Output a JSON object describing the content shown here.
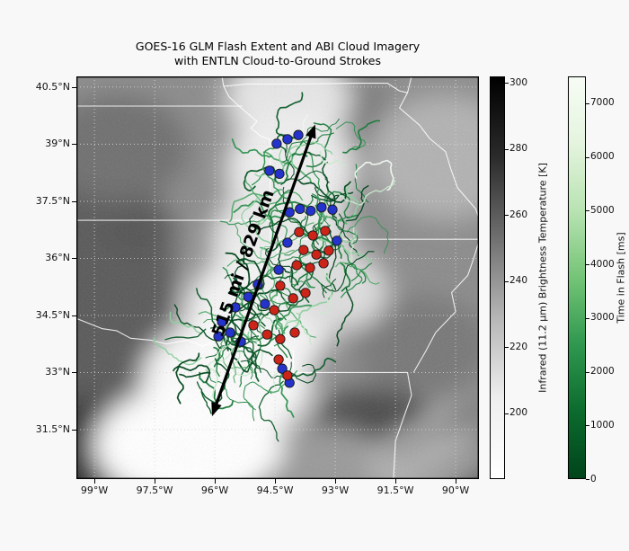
{
  "figure": {
    "title_line1": "GOES-16 GLM Flash Extent and ABI Cloud Imagery",
    "title_line2": "with ENTLN Cloud-to-Ground Strokes",
    "background_color": "#f8f8f8"
  },
  "chart_data": {
    "type": "scatter",
    "title": "GOES-16 GLM Flash Extent and ABI Cloud Imagery with ENTLN Cloud-to-Ground Strokes",
    "map_extent": {
      "lon_min": -99.45,
      "lon_max": -89.42,
      "lat_min": 30.2,
      "lat_max": 40.78
    },
    "x_ticks": [
      {
        "lon": -99,
        "label": "99°W"
      },
      {
        "lon": -97.5,
        "label": "97.5°W"
      },
      {
        "lon": -96,
        "label": "96°W"
      },
      {
        "lon": -94.5,
        "label": "94.5°W"
      },
      {
        "lon": -93,
        "label": "93°W"
      },
      {
        "lon": -91.5,
        "label": "91.5°W"
      },
      {
        "lon": -90,
        "label": "90°W"
      }
    ],
    "y_ticks": [
      {
        "lat": 40.5,
        "label": "40.5°N"
      },
      {
        "lat": 39,
        "label": "39°N"
      },
      {
        "lat": 37.5,
        "label": "37.5°N"
      },
      {
        "lat": 36,
        "label": "36°N"
      },
      {
        "lat": 34.5,
        "label": "34.5°N"
      },
      {
        "lat": 33,
        "label": "33°N"
      },
      {
        "lat": 31.5,
        "label": "31.5°N"
      }
    ],
    "annotation": {
      "text": "515 mi / 829 km",
      "start": [
        -96.07,
        31.85
      ],
      "end": [
        -93.5,
        39.52
      ]
    },
    "colorbars": [
      {
        "label": "Infrared (11.2 μm) Brightness Temperature [K]",
        "vmin": 180,
        "vmax": 302,
        "ticks": [
          300,
          280,
          260,
          240,
          220,
          200
        ],
        "gradient_top_to_bottom": [
          "#000000",
          "#2b2b2b",
          "#6f6f6f",
          "#b6b6b6",
          "#eeeeee",
          "#ffffff"
        ]
      },
      {
        "label": "Time in Flash [ms]",
        "vmin": 0,
        "vmax": 7500,
        "ticks": [
          7000,
          6000,
          5000,
          4000,
          3000,
          2000,
          1000,
          0
        ],
        "gradient_top_to_bottom": [
          "#f7fcf5",
          "#e4f4de",
          "#b8e3b2",
          "#74c476",
          "#2f984f",
          "#0c6b2e",
          "#00441b"
        ]
      }
    ],
    "cg_strokes": {
      "negative_color": "#2433cc",
      "positive_color": "#cc2418",
      "negative": [
        [
          -94.46,
          39.01
        ],
        [
          -94.19,
          39.13
        ],
        [
          -93.92,
          39.24
        ],
        [
          -94.64,
          38.3
        ],
        [
          -94.39,
          38.22
        ],
        [
          -94.14,
          37.21
        ],
        [
          -93.88,
          37.3
        ],
        [
          -93.61,
          37.25
        ],
        [
          -93.34,
          37.34
        ],
        [
          -93.07,
          37.28
        ],
        [
          -94.19,
          36.41
        ],
        [
          -92.96,
          36.46
        ],
        [
          -94.41,
          35.7
        ],
        [
          -94.93,
          35.32
        ],
        [
          -95.17,
          34.99
        ],
        [
          -95.49,
          34.71
        ],
        [
          -94.75,
          34.8
        ],
        [
          -95.82,
          34.33
        ],
        [
          -95.62,
          34.05
        ],
        [
          -95.91,
          33.95
        ],
        [
          -95.35,
          33.81
        ],
        [
          -94.32,
          33.1
        ],
        [
          -94.14,
          32.73
        ]
      ],
      "positive": [
        [
          -93.9,
          36.69
        ],
        [
          -93.56,
          36.6
        ],
        [
          -93.25,
          36.72
        ],
        [
          -93.79,
          36.22
        ],
        [
          -93.47,
          36.1
        ],
        [
          -93.16,
          36.2
        ],
        [
          -93.96,
          35.82
        ],
        [
          -93.63,
          35.75
        ],
        [
          -93.29,
          35.87
        ],
        [
          -94.37,
          35.28
        ],
        [
          -94.05,
          34.95
        ],
        [
          -93.74,
          35.09
        ],
        [
          -94.52,
          34.64
        ],
        [
          -95.04,
          34.24
        ],
        [
          -94.7,
          34.0
        ],
        [
          -94.37,
          33.88
        ],
        [
          -94.01,
          34.05
        ],
        [
          -94.41,
          33.34
        ],
        [
          -94.19,
          32.92
        ]
      ]
    },
    "flash_palette": [
      "#00441b",
      "#0b5a28",
      "#1a7a3a",
      "#2e9150",
      "#55ab6e",
      "#8ecf9f",
      "#c9e8cd",
      "#eef8ef"
    ],
    "flash_palette_weights": [
      0.22,
      0.2,
      0.18,
      0.14,
      0.11,
      0.08,
      0.05,
      0.02
    ],
    "flash_clusters": [
      {
        "lon": -93.63,
        "lat": 38.06,
        "radius_px": 62,
        "branches": 46,
        "seed": 11
      },
      {
        "lon": -93.63,
        "lat": 36.06,
        "radius_px": 58,
        "branches": 42,
        "seed": 22
      },
      {
        "lon": -94.86,
        "lat": 34.64,
        "radius_px": 50,
        "branches": 34,
        "seed": 33
      },
      {
        "lon": -95.64,
        "lat": 33.58,
        "radius_px": 40,
        "branches": 22,
        "seed": 44
      },
      {
        "lon": -94.53,
        "lat": 32.87,
        "radius_px": 28,
        "branches": 13,
        "seed": 55
      },
      {
        "lon": -96.16,
        "lat": 32.68,
        "radius_px": 16,
        "branches": 6,
        "seed": 66
      }
    ],
    "state_borders": [
      [
        [
          -99.45,
          37.0
        ],
        [
          -94.62,
          37.0
        ]
      ],
      [
        [
          -94.62,
          37.0
        ],
        [
          -94.62,
          39.12
        ]
      ],
      [
        [
          -94.62,
          39.12
        ],
        [
          -94.84,
          39.2
        ],
        [
          -95.1,
          39.42
        ],
        [
          -94.95,
          39.6
        ],
        [
          -95.22,
          39.84
        ],
        [
          -95.4,
          40.0
        ],
        [
          -95.65,
          40.25
        ],
        [
          -95.78,
          40.52
        ],
        [
          -95.82,
          40.78
        ]
      ],
      [
        [
          -94.62,
          37.0
        ],
        [
          -94.62,
          36.5
        ],
        [
          -94.44,
          36.5
        ],
        [
          -94.44,
          33.64
        ]
      ],
      [
        [
          -94.62,
          36.5
        ],
        [
          -89.42,
          36.5
        ]
      ],
      [
        [
          -99.45,
          34.42
        ],
        [
          -98.8,
          34.15
        ],
        [
          -98.45,
          34.1
        ],
        [
          -98.1,
          33.9
        ],
        [
          -97.6,
          33.85
        ],
        [
          -97.2,
          33.75
        ],
        [
          -96.7,
          33.85
        ],
        [
          -96.3,
          33.7
        ],
        [
          -95.8,
          33.88
        ],
        [
          -95.3,
          33.87
        ],
        [
          -94.9,
          33.8
        ],
        [
          -94.44,
          33.64
        ]
      ],
      [
        [
          -94.44,
          33.64
        ],
        [
          -94.04,
          33.57
        ],
        [
          -94.04,
          33.0
        ],
        [
          -91.2,
          33.0
        ],
        [
          -91.1,
          32.4
        ],
        [
          -91.3,
          31.8
        ],
        [
          -91.5,
          31.2
        ],
        [
          -91.55,
          30.2
        ]
      ],
      [
        [
          -91.1,
          40.78
        ],
        [
          -91.2,
          40.35
        ],
        [
          -91.4,
          39.95
        ],
        [
          -90.9,
          39.5
        ],
        [
          -90.65,
          39.15
        ],
        [
          -90.25,
          38.8
        ],
        [
          -90.12,
          38.35
        ],
        [
          -89.95,
          37.85
        ],
        [
          -89.5,
          37.3
        ],
        [
          -89.42,
          37.05
        ]
      ],
      [
        [
          -89.42,
          36.45
        ],
        [
          -89.55,
          36.0
        ],
        [
          -89.7,
          35.55
        ],
        [
          -90.1,
          35.1
        ],
        [
          -90.0,
          34.6
        ],
        [
          -90.5,
          34.05
        ],
        [
          -90.75,
          33.55
        ],
        [
          -91.05,
          33.0
        ]
      ],
      [
        [
          -95.78,
          40.52
        ],
        [
          -95.2,
          40.58
        ],
        [
          -94.0,
          40.58
        ],
        [
          -92.5,
          40.6
        ],
        [
          -91.7,
          40.6
        ],
        [
          -91.4,
          40.4
        ],
        [
          -91.2,
          40.35
        ]
      ],
      [
        [
          -99.45,
          40.0
        ],
        [
          -95.31,
          40.0
        ]
      ]
    ]
  }
}
